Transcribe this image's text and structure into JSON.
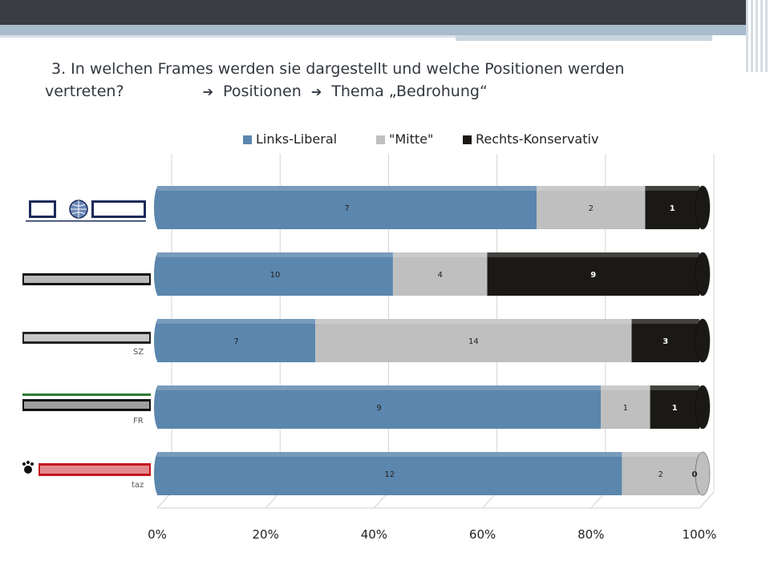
{
  "slide": {
    "title_line1": "3. In welchen Frames werden sie dargestellt und welche Positionen werden",
    "title_line2_a": "vertreten?",
    "title_line2_b": "Positionen",
    "title_line2_c": "Thema „Bedrohung“",
    "arrow_glyph": "➔"
  },
  "logos": [
    {
      "name": "DIE WELT",
      "abbr": ""
    },
    {
      "name": "Frankfurter Allgemeine",
      "abbr": ""
    },
    {
      "name": "Süddeutsche Zeitung",
      "abbr": "SZ"
    },
    {
      "name": "Frankfurter Rundschau",
      "abbr": "FR"
    },
    {
      "name": "die tageszeitung",
      "abbr": "taz"
    }
  ],
  "chart_data": {
    "type": "bar",
    "orientation": "horizontal",
    "stacking": "percent",
    "categories": [
      "DIE WELT",
      "Frankfurter Allgemeine",
      "Süddeutsche Zeitung",
      "Frankfurter Rundschau",
      "die tageszeitung"
    ],
    "series": [
      {
        "name": "Links-Liberal",
        "color": "#5b86ad",
        "values": [
          7,
          10,
          7,
          9,
          12
        ]
      },
      {
        "name": "\"Mitte\"",
        "color": "#bfbfbf",
        "values": [
          2,
          4,
          14,
          1,
          2
        ]
      },
      {
        "name": "Rechts-Konservativ",
        "color": "#1a1915",
        "values": [
          1,
          9,
          3,
          1,
          0
        ]
      }
    ],
    "x_ticks": [
      "0%",
      "20%",
      "40%",
      "60%",
      "80%",
      "100%"
    ],
    "xlim": [
      0,
      100
    ],
    "grid": true,
    "legend": "top",
    "label_colors": [
      "#222222",
      "#222222",
      "#ffffff"
    ]
  }
}
